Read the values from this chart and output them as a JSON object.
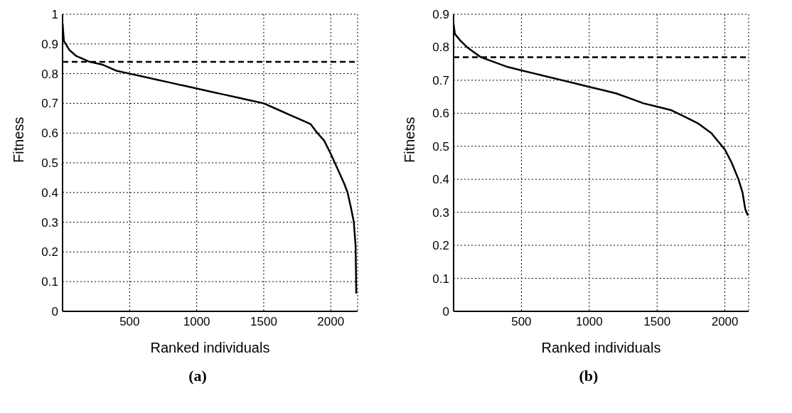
{
  "chart_data": [
    {
      "type": "line",
      "title": "(a)",
      "xlabel": "Ranked individuals",
      "ylabel": "Fitness",
      "xlim": [
        0,
        2200
      ],
      "xticks": [
        500,
        1000,
        1500,
        2000
      ],
      "ylim": [
        0,
        1
      ],
      "yticks": [
        0,
        0.1,
        0.2,
        0.3,
        0.4,
        0.5,
        0.6,
        0.7,
        0.8,
        0.9,
        1
      ],
      "grid": true,
      "line_style": "solid",
      "marker": "none",
      "series": [
        {
          "color": "#000000",
          "x": [
            0,
            10,
            50,
            100,
            150,
            200,
            300,
            400,
            500,
            600,
            700,
            800,
            900,
            1000,
            1100,
            1200,
            1300,
            1400,
            1500,
            1600,
            1700,
            1800,
            1850,
            1900,
            1950,
            2000,
            2050,
            2100,
            2125,
            2150,
            2172,
            2185,
            2190
          ],
          "values": [
            0.97,
            0.91,
            0.88,
            0.86,
            0.85,
            0.84,
            0.83,
            0.81,
            0.8,
            0.79,
            0.78,
            0.77,
            0.76,
            0.75,
            0.74,
            0.73,
            0.72,
            0.71,
            0.7,
            0.68,
            0.66,
            0.64,
            0.63,
            0.6,
            0.575,
            0.53,
            0.48,
            0.43,
            0.4,
            0.35,
            0.3,
            0.22,
            0.06
          ]
        }
      ],
      "ref_lines": [
        {
          "axis": "y",
          "value": 0.84,
          "color": "#000000",
          "line_style": "dashed"
        }
      ]
    },
    {
      "type": "line",
      "title": "(b)",
      "xlabel": "Ranked individuals",
      "ylabel": "Fitness",
      "xlim": [
        0,
        2175
      ],
      "xticks": [
        500,
        1000,
        1500,
        2000
      ],
      "ylim": [
        0,
        0.9
      ],
      "yticks": [
        0,
        0.1,
        0.2,
        0.3,
        0.4,
        0.5,
        0.6,
        0.7,
        0.8,
        0.9
      ],
      "grid": true,
      "line_style": "solid",
      "marker": "none",
      "series": [
        {
          "color": "#000000",
          "x": [
            0,
            10,
            50,
            100,
            150,
            200,
            300,
            400,
            500,
            600,
            700,
            800,
            900,
            1000,
            1100,
            1200,
            1300,
            1400,
            1500,
            1600,
            1700,
            1800,
            1900,
            2000,
            2050,
            2100,
            2130,
            2150,
            2170
          ],
          "values": [
            0.87,
            0.84,
            0.82,
            0.8,
            0.785,
            0.77,
            0.755,
            0.74,
            0.73,
            0.72,
            0.71,
            0.7,
            0.69,
            0.68,
            0.67,
            0.66,
            0.645,
            0.63,
            0.62,
            0.61,
            0.59,
            0.57,
            0.54,
            0.49,
            0.45,
            0.4,
            0.36,
            0.31,
            0.29
          ]
        }
      ],
      "ref_lines": [
        {
          "axis": "y",
          "value": 0.77,
          "color": "#000000",
          "line_style": "dashed"
        }
      ]
    }
  ]
}
